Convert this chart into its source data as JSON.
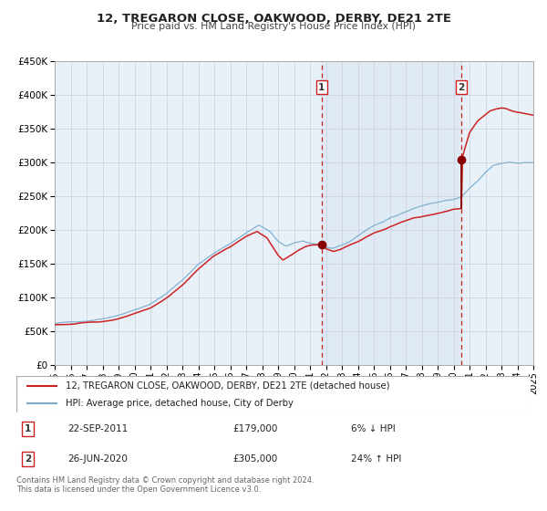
{
  "title": "12, TREGARON CLOSE, OAKWOOD, DERBY, DE21 2TE",
  "subtitle": "Price paid vs. HM Land Registry's House Price Index (HPI)",
  "legend_line1": "12, TREGARON CLOSE, OAKWOOD, DERBY, DE21 2TE (detached house)",
  "legend_line2": "HPI: Average price, detached house, City of Derby",
  "footnote1": "Contains HM Land Registry data © Crown copyright and database right 2024.",
  "footnote2": "This data is licensed under the Open Government Licence v3.0.",
  "sale1_date": "22-SEP-2011",
  "sale1_price": "£179,000",
  "sale1_hpi": "6% ↓ HPI",
  "sale2_date": "26-JUN-2020",
  "sale2_price": "£305,000",
  "sale2_hpi": "24% ↑ HPI",
  "hpi_color": "#7aabcc",
  "house_color": "#cc2222",
  "sale_dot_color": "#880000",
  "vline_color": "#cc2222",
  "background_color": "#ffffff",
  "plot_bg_color": "#e8f0f8",
  "grid_color": "#c8d0dc",
  "sale1_x": 2011.73,
  "sale2_x": 2020.49,
  "sale1_y": 179000,
  "sale2_y": 305000,
  "sale2_y_before": 233000,
  "ylim_max": 450000,
  "xlim_min": 1995,
  "xlim_max": 2025,
  "yticks": [
    0,
    50000,
    100000,
    150000,
    200000,
    250000,
    300000,
    350000,
    400000,
    450000
  ]
}
